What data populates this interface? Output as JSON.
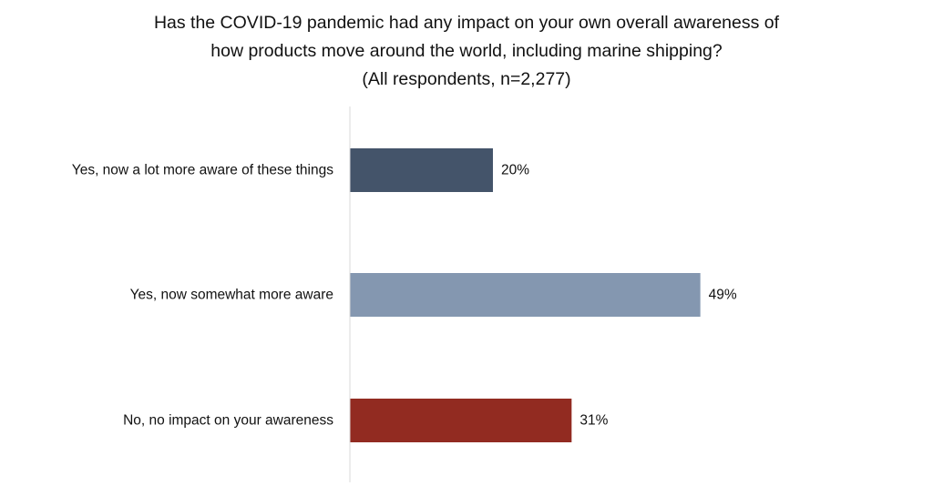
{
  "chart_data": {
    "type": "bar",
    "orientation": "horizontal",
    "title_lines": [
      "Has the COVID-19 pandemic had any impact on your own overall awareness of",
      "how products move around the world, including marine shipping?",
      "(All respondents, n=2,277)"
    ],
    "categories": [
      "Yes, now a lot more aware of these things",
      "Yes, now somewhat more aware",
      "No, no impact on your awareness"
    ],
    "values": [
      20,
      49,
      31
    ],
    "value_labels": [
      "20%",
      "49%",
      "31%"
    ],
    "unit": "%",
    "xlim": [
      0,
      100
    ],
    "bar_colors": [
      "#44546a",
      "#8497b0",
      "#922b21"
    ],
    "axis_color": "#d9d9d9",
    "grid": false,
    "legend": "none"
  }
}
